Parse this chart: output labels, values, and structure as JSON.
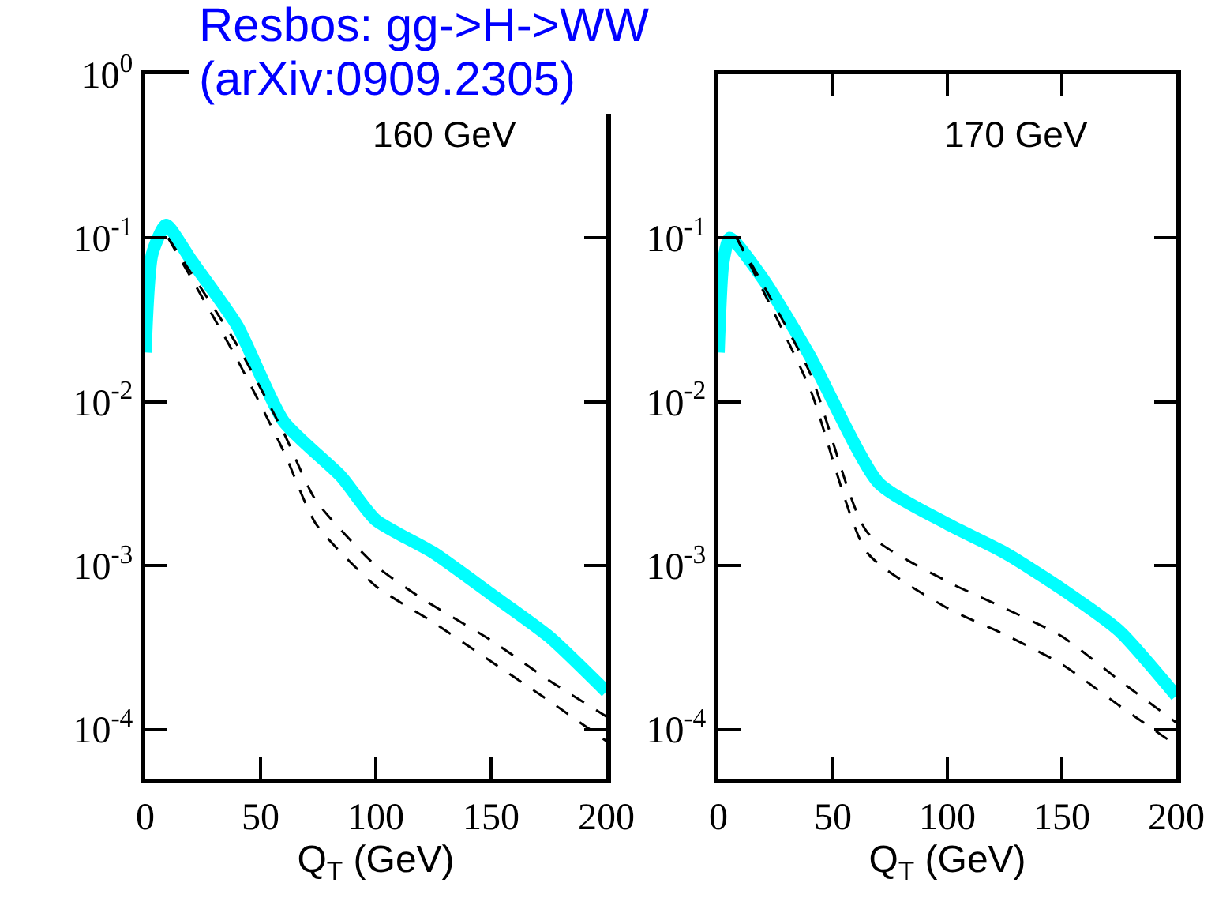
{
  "chart_data": [
    {
      "type": "line",
      "title": "Resbos: gg->H->WW\n(arXiv:0909.2305)",
      "xlabel": "Q$_{T}$ (GeV)",
      "log": true,
      "xlim": [
        0,
        200
      ],
      "ylim": [
        5e-05,
        1
      ],
      "xticks": [
        0,
        50,
        100,
        150,
        200
      ],
      "yticks": [
        {
          "value": 1,
          "label": "10$^{0}$"
        },
        {
          "value": 0.1,
          "label": "10$^{-1}$"
        },
        {
          "value": 0.01,
          "label": "10$^{-2}$"
        },
        {
          "value": 0.001,
          "label": "10$^{-3}$"
        },
        {
          "value": 0.0001,
          "label": "10$^{-4}$"
        }
      ],
      "annotations": [
        "160 GeV"
      ],
      "series": [
        {
          "color": "#00ffff",
          "x": [
            0,
            3,
            9,
            20,
            40,
            60,
            85,
            100,
            125,
            150,
            175,
            200
          ],
          "values": [
            0.02,
            0.08,
            0.12,
            0.073,
            0.029,
            0.0076,
            0.0035,
            0.0019,
            0.0012,
            0.00067,
            0.00037,
            0.00017
          ]
        },
        {
          "color": "#000000",
          "line_style": "dashed",
          "x": [
            10,
            40,
            60,
            74,
            100,
            120,
            150,
            175,
            200
          ],
          "values": [
            0.1,
            0.022,
            0.0065,
            0.0025,
            0.001,
            0.00063,
            0.00035,
            0.0002,
            0.00012
          ]
        },
        {
          "color": "#000000",
          "line_style": "dashed",
          "x": [
            10,
            40,
            60,
            74,
            100,
            125,
            150,
            175,
            200
          ],
          "values": [
            0.1,
            0.018,
            0.005,
            0.0018,
            0.00075,
            0.00045,
            0.00026,
            0.00015,
            8.5e-05
          ]
        }
      ]
    },
    {
      "type": "line",
      "xlabel": "Q$_{T}$ (GeV)",
      "log": true,
      "xlim": [
        0,
        200
      ],
      "ylim": [
        5e-05,
        1
      ],
      "xticks": [
        0,
        50,
        100,
        150,
        200
      ],
      "yticks": [
        {
          "value": 0.1,
          "label": "10$^{-1}$"
        },
        {
          "value": 0.01,
          "label": "10$^{-2}$"
        },
        {
          "value": 0.001,
          "label": "10$^{-3}$"
        },
        {
          "value": 0.0001,
          "label": "10$^{-4}$"
        }
      ],
      "annotations": [
        "170 GeV"
      ],
      "series": [
        {
          "color": "#00ffff",
          "x": [
            0,
            2,
            5,
            20,
            40,
            70,
            100,
            125,
            150,
            175,
            200
          ],
          "values": [
            0.02,
            0.07,
            0.1,
            0.055,
            0.019,
            0.0032,
            0.0018,
            0.0012,
            0.00072,
            0.0004,
            0.00016
          ]
        },
        {
          "color": "#000000",
          "line_style": "dashed",
          "x": [
            8,
            40,
            65,
            100,
            125,
            150,
            175,
            200
          ],
          "values": [
            0.1,
            0.015,
            0.0016,
            0.0008,
            0.00055,
            0.00037,
            0.0002,
            0.00011
          ]
        },
        {
          "color": "#000000",
          "line_style": "dashed",
          "x": [
            8,
            40,
            65,
            100,
            125,
            150,
            175,
            200
          ],
          "values": [
            0.1,
            0.012,
            0.0012,
            0.00055,
            0.00038,
            0.00025,
            0.00014,
            8e-05
          ]
        }
      ]
    }
  ]
}
